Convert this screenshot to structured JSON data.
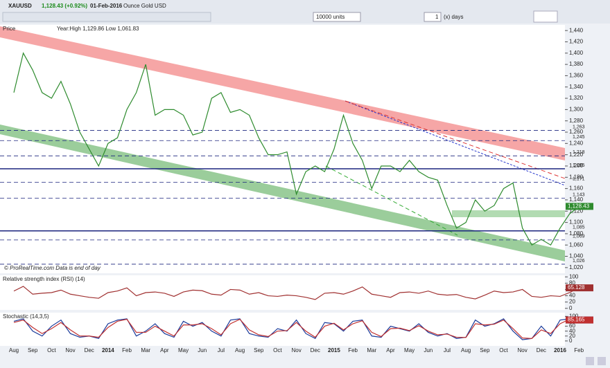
{
  "toolbar": {
    "symbol": "XAUUSD",
    "price": "1,128.43 (+0.92%)",
    "date": "01-Feb-2016",
    "description": "Ounce Gold USD",
    "units": "10000 units",
    "period_value": "1",
    "period_unit": "(x) days"
  },
  "footer": "© ProRealTime.com  Data is end of day",
  "chart_data": [
    {
      "type": "line",
      "title": "Price",
      "subtitle": "Year:High 1,129.86 Low 1,061.83",
      "categories": [
        "Aug",
        null,
        "Sep",
        null,
        "Oct",
        null,
        "Nov",
        null,
        "Dec",
        null,
        "2014",
        null,
        "Feb",
        null,
        "Mar",
        null,
        "Apr",
        null,
        "May",
        null,
        "Jun",
        null,
        "Jul",
        null,
        "Aug",
        null,
        "Sep",
        null,
        "Oct",
        null,
        "Nov",
        null,
        "Dec",
        null,
        "2015",
        null,
        "Feb",
        null,
        "Mar",
        null,
        "Apr",
        null,
        "May",
        null,
        "Jun",
        null,
        "Jul",
        null,
        "Aug",
        null,
        "Sep",
        null,
        "Oct",
        null,
        "Nov",
        null,
        "Dec",
        null,
        "2016",
        null,
        "Feb"
      ],
      "values": [
        1330,
        1400,
        1370,
        1330,
        1320,
        1350,
        1310,
        1260,
        1230,
        1200,
        1240,
        1250,
        1300,
        1330,
        1380,
        1290,
        1300,
        1300,
        1290,
        1255,
        1260,
        1320,
        1330,
        1295,
        1300,
        1290,
        1250,
        1220,
        1220,
        1225,
        1150,
        1190,
        1200,
        1190,
        1230,
        1290,
        1240,
        1210,
        1160,
        1200,
        1200,
        1190,
        1210,
        1190,
        1180,
        1175,
        1130,
        1090,
        1100,
        1140,
        1120,
        1130,
        1160,
        1170,
        1090,
        1060,
        1070,
        1060,
        1090,
        1115,
        1128.43
      ],
      "color": "#2e8b2e",
      "last_value_label": "1,128.43",
      "ylim": [
        1010,
        1450
      ],
      "yticks": [
        {
          "value": 1020,
          "label": "1,020"
        },
        {
          "value": 1040,
          "label": "1,040"
        },
        {
          "value": 1060,
          "label": "1,060"
        },
        {
          "value": 1080,
          "label": "1,080"
        },
        {
          "value": 1100,
          "label": "1,100"
        },
        {
          "value": 1120,
          "label": "1,120"
        },
        {
          "value": 1140,
          "label": "1,140"
        },
        {
          "value": 1160,
          "label": "1,160"
        },
        {
          "value": 1180,
          "label": "1,180"
        },
        {
          "value": 1200,
          "label": "1,200"
        },
        {
          "value": 1220,
          "label": "1,220"
        },
        {
          "value": 1240,
          "label": "1,240"
        },
        {
          "value": 1260,
          "label": "1,260"
        },
        {
          "value": 1280,
          "label": "1,280"
        },
        {
          "value": 1300,
          "label": "1,300"
        },
        {
          "value": 1320,
          "label": "1,320"
        },
        {
          "value": 1340,
          "label": "1,340"
        },
        {
          "value": 1360,
          "label": "1,360"
        },
        {
          "value": 1380,
          "label": "1,380"
        },
        {
          "value": 1400,
          "label": "1,400"
        },
        {
          "value": 1420,
          "label": "1,420"
        },
        {
          "value": 1440,
          "label": "1,440"
        }
      ],
      "levels": [
        {
          "value": 1263,
          "label": "1,263"
        },
        {
          "value": 1245,
          "label": "1,245"
        },
        {
          "value": 1218,
          "label": "1,218"
        },
        {
          "value": 1195,
          "label": "1,195",
          "style": "solid"
        },
        {
          "value": 1171,
          "label": "1,171"
        },
        {
          "value": 1143,
          "label": "1,143"
        },
        {
          "value": 1085,
          "label": "1,085",
          "style": "solid"
        },
        {
          "value": 1069,
          "label": "1,069"
        },
        {
          "value": 1026,
          "label": "1,026"
        }
      ]
    },
    {
      "type": "line",
      "title": "Relative strength index (RSI) (14)",
      "values": [
        55,
        70,
        45,
        48,
        50,
        58,
        45,
        40,
        35,
        32,
        50,
        55,
        65,
        40,
        50,
        52,
        48,
        38,
        52,
        58,
        56,
        45,
        42,
        60,
        58,
        45,
        50,
        40,
        38,
        42,
        40,
        35,
        28,
        48,
        50,
        45,
        55,
        68,
        45,
        40,
        35,
        50,
        52,
        48,
        55,
        45,
        42,
        44,
        35,
        30,
        42,
        55,
        50,
        52,
        60,
        38,
        35,
        40,
        38,
        50,
        65.128
      ],
      "color": "#a03030",
      "last_value_label": "65.128",
      "ylim": [
        -5,
        105
      ],
      "yticks": [
        0,
        20,
        40,
        60,
        80,
        100
      ]
    },
    {
      "type": "lines",
      "title": "Stochastic (14,3,5)",
      "series": [
        {
          "color": "#1a3a9a",
          "last_value_label": "85.276",
          "values": [
            80,
            90,
            40,
            20,
            60,
            85,
            30,
            15,
            20,
            10,
            70,
            85,
            90,
            20,
            40,
            70,
            30,
            15,
            80,
            60,
            75,
            40,
            20,
            85,
            90,
            30,
            20,
            15,
            50,
            40,
            85,
            30,
            10,
            75,
            70,
            40,
            80,
            85,
            20,
            15,
            60,
            50,
            40,
            70,
            35,
            20,
            30,
            10,
            15,
            85,
            60,
            70,
            90,
            40,
            5,
            10,
            60,
            20,
            85,
            90,
            85.276
          ]
        },
        {
          "color": "#c03030",
          "last_value_label": "85.165",
          "values": [
            75,
            85,
            55,
            30,
            50,
            75,
            45,
            20,
            20,
            15,
            55,
            80,
            88,
            35,
            35,
            60,
            40,
            20,
            65,
            65,
            70,
            50,
            25,
            70,
            88,
            45,
            25,
            18,
            40,
            42,
            75,
            40,
            15,
            60,
            72,
            45,
            70,
            82,
            35,
            18,
            50,
            52,
            42,
            62,
            40,
            25,
            28,
            15,
            14,
            70,
            65,
            68,
            85,
            50,
            12,
            10,
            45,
            30,
            70,
            88,
            85.165
          ]
        }
      ],
      "ylim": [
        -20,
        115
      ],
      "yticks": [
        0,
        20,
        40,
        60,
        80,
        100
      ]
    }
  ]
}
